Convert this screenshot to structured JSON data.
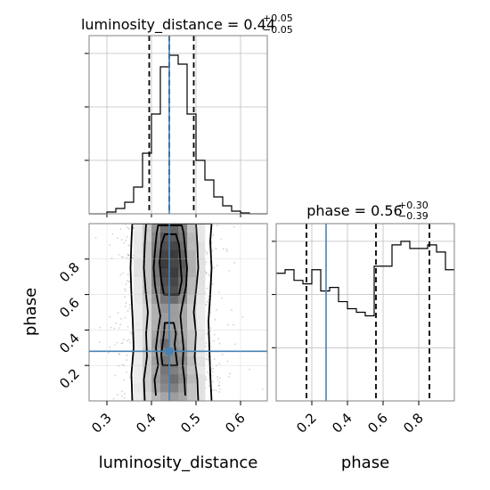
{
  "chart_data": [
    {
      "type": "histogram",
      "panel": "luminosity_distance marginal",
      "title_label": "luminosity_distance",
      "title_value": "0.44",
      "title_plus": "+0.05",
      "title_minus": "−0.05",
      "bin_edges": [
        0.26,
        0.28,
        0.3,
        0.32,
        0.34,
        0.36,
        0.38,
        0.4,
        0.42,
        0.44,
        0.46,
        0.48,
        0.5,
        0.52,
        0.54,
        0.56,
        0.58,
        0.6,
        0.62,
        0.64,
        0.66
      ],
      "counts": [
        0,
        0,
        2,
        6,
        13,
        30,
        68,
        112,
        165,
        178,
        168,
        112,
        60,
        38,
        19,
        9,
        3,
        1,
        0,
        0
      ],
      "xlim": [
        0.26,
        0.66
      ],
      "ylim": [
        0,
        200
      ],
      "quantiles": [
        0.395,
        0.44,
        0.495
      ],
      "truth": 0.44
    },
    {
      "type": "histogram",
      "panel": "phase marginal",
      "title_label": "phase",
      "title_value": "0.56",
      "title_plus": "+0.30",
      "title_minus": "−0.39",
      "bin_edges": [
        0.0,
        0.05,
        0.1,
        0.15,
        0.2,
        0.25,
        0.3,
        0.35,
        0.4,
        0.45,
        0.5,
        0.55,
        0.6,
        0.65,
        0.7,
        0.75,
        0.8,
        0.85,
        0.9,
        0.95,
        1.0
      ],
      "counts": [
        72,
        74,
        68,
        66,
        74,
        62,
        64,
        56,
        52,
        50,
        48,
        76,
        76,
        88,
        90,
        86,
        86,
        88,
        84,
        74
      ],
      "xlim": [
        0.0,
        1.0
      ],
      "ylim": [
        0,
        100
      ],
      "quantiles": [
        0.17,
        0.56,
        0.86
      ],
      "truth": 0.28,
      "xticks": [
        "0.2",
        "0.4",
        "0.6",
        "0.8"
      ],
      "xlabel": "phase"
    },
    {
      "type": "heatmap",
      "panel": "phase vs luminosity_distance 2D",
      "x_variable": "luminosity_distance",
      "y_variable": "phase",
      "xlim": [
        0.26,
        0.66
      ],
      "ylim": [
        0.0,
        1.0
      ],
      "x_edges": [
        0.34,
        0.36,
        0.38,
        0.4,
        0.42,
        0.44,
        0.46,
        0.48,
        0.5,
        0.52,
        0.54
      ],
      "y_edges": [
        0.0,
        0.05,
        0.1,
        0.15,
        0.2,
        0.25,
        0.3,
        0.35,
        0.4,
        0.45,
        0.5,
        0.55,
        0.6,
        0.65,
        0.7,
        0.75,
        0.8,
        0.85,
        0.9,
        0.95,
        1.0
      ],
      "density": [
        [
          0.05,
          0.1,
          0.2,
          0.35,
          0.45,
          0.5,
          0.45,
          0.3,
          0.15,
          0.05
        ],
        [
          0.05,
          0.12,
          0.25,
          0.45,
          0.6,
          0.65,
          0.5,
          0.3,
          0.15,
          0.05
        ],
        [
          0.05,
          0.1,
          0.25,
          0.5,
          0.65,
          0.75,
          0.6,
          0.35,
          0.15,
          0.05
        ],
        [
          0.05,
          0.1,
          0.25,
          0.45,
          0.7,
          0.65,
          0.55,
          0.3,
          0.12,
          0.05
        ],
        [
          0.05,
          0.1,
          0.25,
          0.5,
          0.7,
          0.6,
          0.6,
          0.35,
          0.15,
          0.05
        ],
        [
          0.05,
          0.1,
          0.25,
          0.45,
          0.65,
          0.6,
          0.55,
          0.3,
          0.12,
          0.05
        ],
        [
          0.05,
          0.1,
          0.2,
          0.5,
          0.75,
          0.55,
          0.5,
          0.3,
          0.12,
          0.05
        ],
        [
          0.05,
          0.1,
          0.2,
          0.45,
          0.6,
          0.55,
          0.45,
          0.3,
          0.12,
          0.05
        ],
        [
          0.05,
          0.1,
          0.2,
          0.4,
          0.55,
          0.5,
          0.45,
          0.25,
          0.1,
          0.05
        ],
        [
          0.05,
          0.1,
          0.2,
          0.4,
          0.5,
          0.5,
          0.45,
          0.25,
          0.1,
          0.05
        ],
        [
          0.05,
          0.1,
          0.2,
          0.4,
          0.55,
          0.5,
          0.45,
          0.25,
          0.1,
          0.05
        ],
        [
          0.05,
          0.12,
          0.25,
          0.5,
          0.7,
          0.75,
          0.6,
          0.3,
          0.12,
          0.05
        ],
        [
          0.05,
          0.12,
          0.3,
          0.6,
          0.85,
          0.9,
          0.7,
          0.35,
          0.15,
          0.05
        ],
        [
          0.05,
          0.12,
          0.3,
          0.65,
          0.9,
          0.95,
          0.75,
          0.35,
          0.15,
          0.05
        ],
        [
          0.05,
          0.15,
          0.3,
          0.7,
          0.95,
          1.0,
          0.8,
          0.4,
          0.15,
          0.05
        ],
        [
          0.05,
          0.15,
          0.3,
          0.7,
          1.0,
          0.95,
          0.85,
          0.4,
          0.15,
          0.05
        ],
        [
          0.05,
          0.12,
          0.3,
          0.7,
          0.95,
          1.0,
          0.8,
          0.4,
          0.15,
          0.05
        ],
        [
          0.05,
          0.12,
          0.3,
          0.65,
          0.9,
          0.95,
          0.75,
          0.35,
          0.15,
          0.05
        ],
        [
          0.05,
          0.12,
          0.25,
          0.6,
          0.85,
          0.85,
          0.7,
          0.35,
          0.12,
          0.05
        ],
        [
          0.05,
          0.1,
          0.25,
          0.55,
          0.75,
          0.8,
          0.65,
          0.3,
          0.12,
          0.05
        ]
      ],
      "contours": [
        {
          "phase": [
            0.0,
            0.15,
            0.3,
            0.45,
            0.6,
            0.75,
            0.9,
            1.0
          ],
          "left": [
            0.357,
            0.355,
            0.36,
            0.358,
            0.355,
            0.353,
            0.355,
            0.357
          ],
          "right": [
            0.535,
            0.532,
            0.53,
            0.528,
            0.532,
            0.535,
            0.532,
            0.535
          ]
        },
        {
          "phase": [
            0.0,
            0.12,
            0.25,
            0.38,
            0.5,
            0.62,
            0.75,
            0.88,
            1.0
          ],
          "left": [
            0.385,
            0.383,
            0.39,
            0.388,
            0.392,
            0.387,
            0.383,
            0.385,
            0.388
          ],
          "right": [
            0.505,
            0.503,
            0.497,
            0.5,
            0.495,
            0.5,
            0.505,
            0.503,
            0.5
          ]
        },
        {
          "phase": [
            0.03,
            0.12,
            0.2,
            0.3,
            0.4,
            0.48,
            0.55,
            0.65,
            0.75,
            0.85,
            0.95,
            0.99
          ],
          "left": [
            0.41,
            0.407,
            0.415,
            0.41,
            0.415,
            0.42,
            0.415,
            0.408,
            0.405,
            0.408,
            0.412,
            0.415
          ],
          "right": [
            0.476,
            0.474,
            0.47,
            0.472,
            0.468,
            0.465,
            0.47,
            0.478,
            0.48,
            0.476,
            0.472,
            0.468
          ]
        },
        {
          "phase": [
            0.2,
            0.26,
            0.32,
            0.38,
            0.44
          ],
          "left": [
            0.425,
            0.422,
            0.425,
            0.428,
            0.43
          ],
          "right": [
            0.458,
            0.455,
            0.452,
            0.455,
            0.45
          ]
        },
        {
          "phase": [
            0.6,
            0.68,
            0.78,
            0.88,
            0.94
          ],
          "left": [
            0.428,
            0.422,
            0.418,
            0.422,
            0.43
          ],
          "right": [
            0.462,
            0.468,
            0.465,
            0.462,
            0.455
          ]
        }
      ],
      "truth_point": {
        "x": 0.44,
        "y": 0.28
      },
      "xticks": [
        "0.3",
        "0.4",
        "0.5",
        "0.6"
      ],
      "yticks": [
        "0.2",
        "0.4",
        "0.6",
        "0.8"
      ],
      "xlabel": "luminosity_distance",
      "ylabel": "phase"
    }
  ],
  "colors": {
    "truth": "#4682b4",
    "hist": "#000000",
    "grid": "#bfbfbf",
    "frame": "#808080"
  }
}
